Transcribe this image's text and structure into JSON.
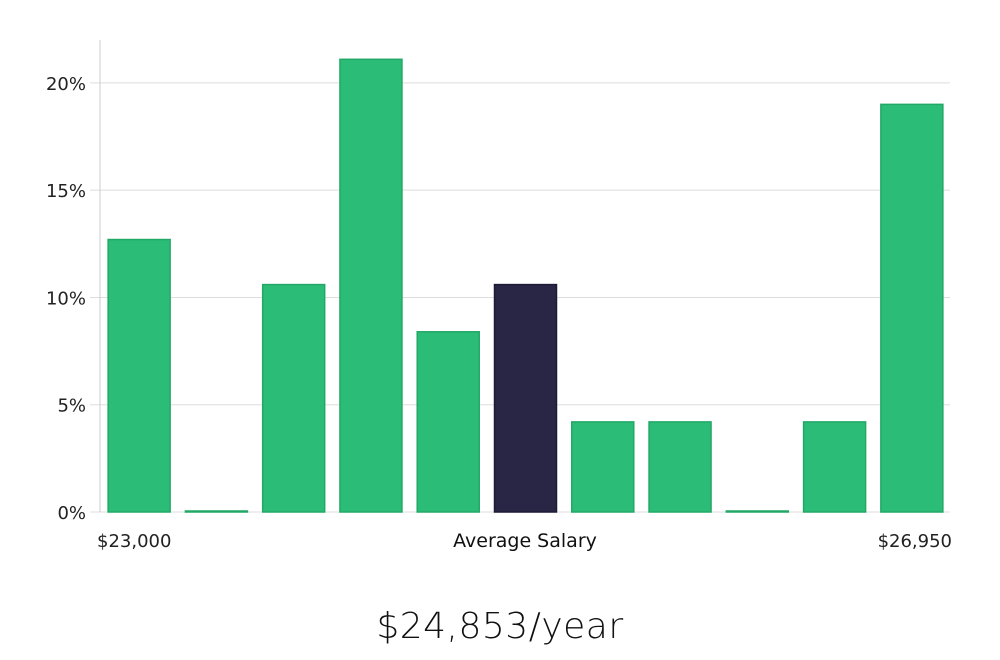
{
  "chart_data": {
    "type": "bar",
    "title": "",
    "xlabel": "Average Salary",
    "ylabel": "",
    "x_start_label": "$23,000",
    "x_end_label": "$26,950",
    "ylim": [
      0,
      22
    ],
    "yticks": [
      0,
      5,
      10,
      15,
      20
    ],
    "ytick_labels": [
      "0%",
      "5%",
      "10%",
      "15%",
      "20%"
    ],
    "values": [
      12.7,
      0,
      10.6,
      21.1,
      8.4,
      10.6,
      4.2,
      4.2,
      0,
      4.2,
      19.0
    ],
    "highlight_index": 5,
    "colors": {
      "bar": "#2bbd77",
      "bar_stroke": "#22a866",
      "highlight": "#282545",
      "grid": "#dddddd",
      "axis": "#cccccc"
    }
  },
  "summary": {
    "salary": "$24,853/year"
  }
}
